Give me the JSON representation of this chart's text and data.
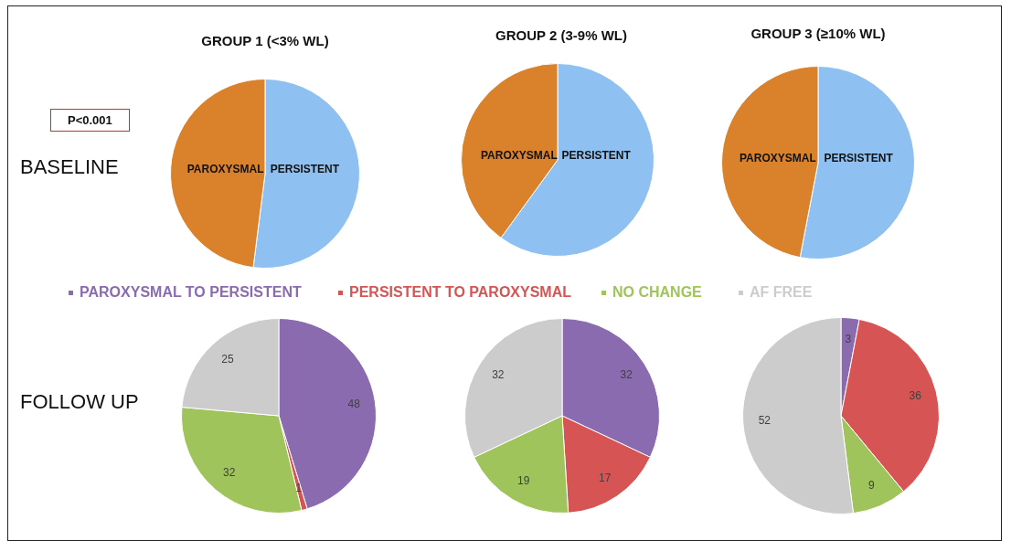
{
  "chart_data": [
    {
      "type": "pie",
      "title": "GROUP 1 (<3% WL)",
      "categories": [
        "PERSISTENT",
        "PAROXYSMAL"
      ],
      "values": [
        52,
        48
      ],
      "colors": [
        "#8fc0f2",
        "#d9822b"
      ],
      "annotations": [
        "P<0.001",
        "BASELINE"
      ]
    },
    {
      "type": "pie",
      "title": "GROUP 2 (3-9% WL)",
      "categories": [
        "PERSISTENT",
        "PAROXYSMAL"
      ],
      "values": [
        60,
        40
      ],
      "colors": [
        "#8fc0f2",
        "#d9822b"
      ]
    },
    {
      "type": "pie",
      "title": "GROUP 3 (≥10% WL)",
      "categories": [
        "PERSISTENT",
        "PAROXYSMAL"
      ],
      "values": [
        53,
        47
      ],
      "colors": [
        "#8fc0f2",
        "#d9822b"
      ]
    },
    {
      "type": "pie",
      "categories": [
        "PAROXYSMAL TO PERSISTENT",
        "PERSISTENT TO PAROXYSMAL",
        "NO CHANGE",
        "AF FREE"
      ],
      "values": [
        48,
        1,
        32,
        25
      ],
      "colors": [
        "#8a6bb0",
        "#d65454",
        "#a0c45c",
        "#cccccc"
      ],
      "data_labels": true,
      "legend": "top",
      "annotations": [
        "FOLLOW UP"
      ]
    },
    {
      "type": "pie",
      "categories": [
        null,
        null,
        null,
        null
      ],
      "values": [
        32,
        17,
        19,
        32
      ],
      "colors": [
        "#8a6bb0",
        "#d65454",
        "#a0c45c",
        "#cccccc"
      ],
      "data_labels": true
    },
    {
      "type": "pie",
      "categories": [
        null,
        null,
        null,
        null
      ],
      "values": [
        3,
        36,
        9,
        52
      ],
      "colors": [
        "#8a6bb0",
        "#d65454",
        "#a0c45c",
        "#cccccc"
      ],
      "data_labels": true
    }
  ]
}
